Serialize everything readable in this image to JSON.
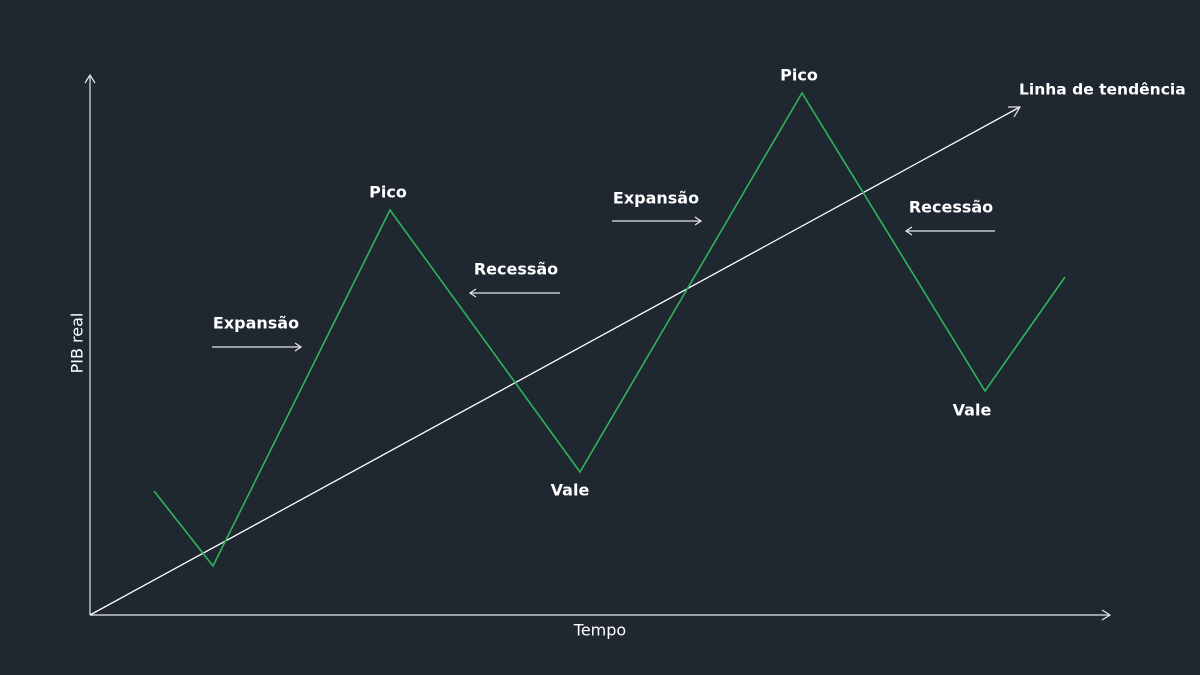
{
  "axes": {
    "x_label": "Tempo",
    "y_label": "PIB real"
  },
  "trend_label": "Linha de tendência",
  "phases": [
    "Expansão",
    "Pico",
    "Recessão",
    "Vale",
    "Expansão",
    "Pico",
    "Recessão",
    "Vale"
  ]
}
